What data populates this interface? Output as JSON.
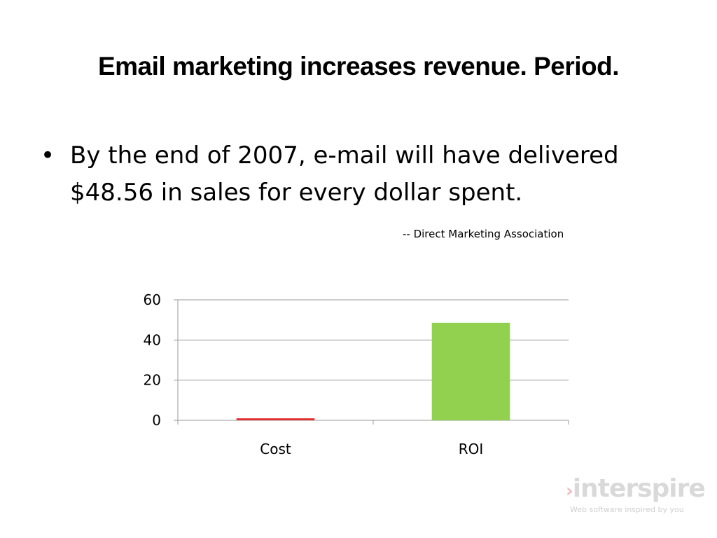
{
  "slide": {
    "title": "Email marketing increases revenue. Period.",
    "bullet_symbol": "•",
    "bullet_text": "By the end of 2007, e-mail will have delivered $48.56 in sales for every dollar spent.",
    "attribution": "-- Direct Marketing Association"
  },
  "chart_data": {
    "type": "bar",
    "categories": [
      "Cost",
      "ROI"
    ],
    "values": [
      1,
      48.56
    ],
    "bar_colors": [
      "#e03030",
      "#92d050"
    ],
    "ylim": [
      0,
      60
    ],
    "yticks": [
      0,
      20,
      40,
      60
    ],
    "grid": true,
    "legend": "none"
  },
  "logo": {
    "arrow": "›",
    "name": "interspire",
    "tagline": "Web software inspired by you",
    "color": "#d9d9d9"
  }
}
